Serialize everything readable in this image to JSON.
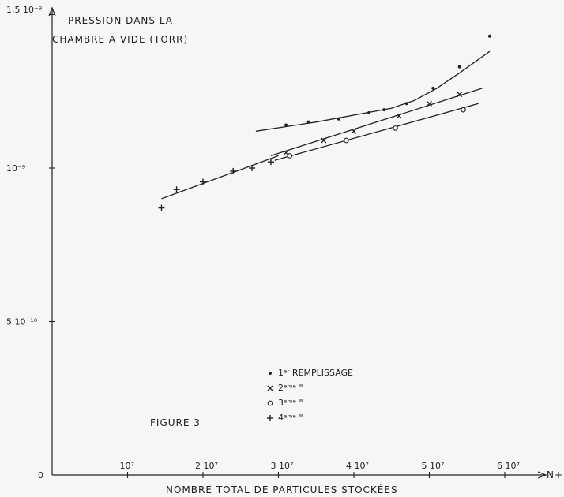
{
  "chart_data": {
    "type": "scatter",
    "y_title_lines": [
      "PRESSION DANS LA",
      "CHAMBRE  A  VIDE (TORR)"
    ],
    "xlabel": "NOMBRE   TOTAL DE PARTICULES  STOCKÉES",
    "x_axis_symbol": "N+N",
    "figure_label": "FIGURE  3",
    "xlim": [
      0,
      62000000
    ],
    "ylim": [
      0,
      1.5e-09
    ],
    "x_ticks": [
      {
        "value": 10000000,
        "label": "10⁷"
      },
      {
        "value": 20000000,
        "label": "2 10⁷"
      },
      {
        "value": 30000000,
        "label": "3 10⁷"
      },
      {
        "value": 40000000,
        "label": "4 10⁷"
      },
      {
        "value": 50000000,
        "label": "5 10⁷"
      },
      {
        "value": 60000000,
        "label": "6 10⁷"
      }
    ],
    "x_origin_label": "0",
    "y_ticks": [
      {
        "value": 5e-10,
        "label": "5 10⁻¹⁰"
      },
      {
        "value": 1e-09,
        "label": "10⁻⁹"
      },
      {
        "value": 1.5e-09,
        "label": "1,5 10⁻⁹"
      }
    ],
    "series": [
      {
        "name": "1ᵉʳ   REMPLISSAGE",
        "marker": "dot",
        "x": [
          31000000,
          34000000,
          38000000,
          42000000,
          44000000,
          47000000,
          50500000,
          54000000,
          58000000
        ],
        "y": [
          1.14e-09,
          1.15e-09,
          1.16e-09,
          1.18e-09,
          1.19e-09,
          1.21e-09,
          1.26e-09,
          1.33e-09,
          1.43e-09
        ],
        "fit_x": [
          27000000,
          35000000,
          45000000,
          48000000,
          51000000,
          54000000,
          58000000
        ],
        "fit_y": [
          1.12e-09,
          1.15e-09,
          1.195e-09,
          1.22e-09,
          1.26e-09,
          1.31e-09,
          1.38e-09
        ]
      },
      {
        "name": "2ᵉᵐᵉ   \"",
        "marker": "x",
        "x": [
          31000000,
          36000000,
          40000000,
          46000000,
          50000000,
          54000000
        ],
        "y": [
          1.05e-09,
          1.09e-09,
          1.12e-09,
          1.17e-09,
          1.21e-09,
          1.24e-09
        ],
        "fit_x": [
          29000000,
          57000000
        ],
        "fit_y": [
          1.04e-09,
          1.26e-09
        ]
      },
      {
        "name": "3ᵉᵐᵉ   \"",
        "marker": "o",
        "x": [
          31500000,
          39000000,
          45500000,
          54500000
        ],
        "y": [
          1.04e-09,
          1.09e-09,
          1.13e-09,
          1.19e-09
        ],
        "fit_x": [
          29500000,
          56500000
        ],
        "fit_y": [
          1.025e-09,
          1.21e-09
        ]
      },
      {
        "name": "4ᵉᵐᵉ   \"",
        "marker": "+",
        "x": [
          14500000,
          16500000,
          20000000,
          24000000,
          26500000,
          29000000
        ],
        "y": [
          8.7e-10,
          9.3e-10,
          9.55e-10,
          9.9e-10,
          1e-09,
          1.02e-09
        ],
        "fit_x": [
          14500000,
          30000000
        ],
        "fit_y": [
          9e-10,
          1.04e-09
        ]
      }
    ]
  }
}
